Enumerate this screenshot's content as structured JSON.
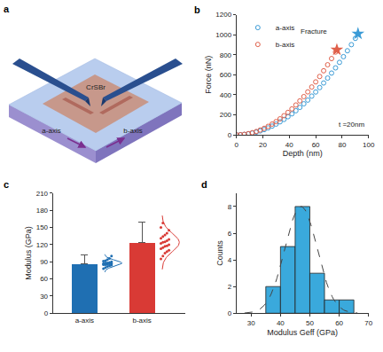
{
  "chart_data": [
    {
      "type": "diagram",
      "panel": "a",
      "labels": {
        "flake": "CrSBr",
        "axis1": "a-axis",
        "axis2": "b-axis"
      }
    },
    {
      "type": "scatter",
      "panel": "b",
      "x_label": "Depth (nm)",
      "y_label": "Force (nN)",
      "xlim": [
        0,
        100
      ],
      "xticks": [
        0,
        20,
        40,
        60,
        80,
        100
      ],
      "ylim": [
        0,
        1200
      ],
      "yticks": [
        0,
        200,
        400,
        600,
        800,
        1000,
        1200
      ],
      "grid": false,
      "legend": "upper left",
      "marker": "open circle",
      "annotations": [
        "Fracture",
        "t =20nm"
      ],
      "series": [
        {
          "name": "a-axis",
          "color": "#3b9bd6",
          "x": [
            0,
            3,
            6,
            9,
            12,
            15,
            18,
            21,
            24,
            27,
            30,
            33,
            36,
            39,
            42,
            45,
            48,
            51,
            54,
            57,
            60,
            63,
            66,
            69,
            72,
            75,
            78,
            81,
            84,
            87,
            90,
            92
          ],
          "values": [
            0,
            1,
            4,
            10,
            17,
            27,
            39,
            52,
            69,
            87,
            107,
            130,
            154,
            181,
            210,
            241,
            274,
            310,
            347,
            387,
            428,
            472,
            518,
            567,
            617,
            669,
            724,
            781,
            840,
            901,
            964,
            1007
          ],
          "fracture": {
            "x": 92,
            "y": 1010
          }
        },
        {
          "name": "b-axis",
          "color": "#e0604a",
          "x": [
            0,
            3,
            6,
            9,
            12,
            15,
            18,
            21,
            24,
            27,
            30,
            33,
            36,
            39,
            42,
            45,
            48,
            51,
            54,
            57,
            60,
            63,
            66,
            69,
            72,
            75,
            76
          ],
          "values": [
            0,
            1,
            5,
            12,
            21,
            33,
            48,
            65,
            85,
            107,
            132,
            160,
            191,
            224,
            259,
            298,
            339,
            382,
            429,
            478,
            529,
            583,
            640,
            700,
            762,
            827,
            849
          ],
          "fracture": {
            "x": 76,
            "y": 850
          }
        }
      ]
    },
    {
      "type": "bar",
      "panel": "c",
      "y_label": "Modulus (GPa)",
      "categories": [
        "a-axis",
        "b-axis"
      ],
      "values": [
        86,
        123
      ],
      "error": [
        16,
        37
      ],
      "colors": [
        "#1f6fb2",
        "#d93a35"
      ],
      "ylim": [
        0,
        210
      ],
      "yticks": [
        0,
        30,
        60,
        90,
        120,
        150,
        180,
        210
      ],
      "grid": false,
      "points": [
        [
          78,
          80,
          82,
          83,
          84,
          85,
          85,
          86,
          86,
          87,
          87,
          88,
          88,
          89,
          90,
          91,
          92,
          94,
          96,
          100
        ],
        [
          95,
          100,
          105,
          108,
          110,
          113,
          115,
          117,
          118,
          120,
          122,
          124,
          125,
          127,
          129,
          131,
          134,
          137,
          140,
          145,
          150,
          158
        ]
      ]
    },
    {
      "type": "histogram",
      "panel": "d",
      "x_label": "Modulus Geff (GPa)",
      "y_label": "Counts",
      "bins": [
        35,
        40,
        45,
        50,
        55,
        60,
        65
      ],
      "counts": [
        2,
        5,
        8,
        3,
        1,
        1
      ],
      "color": "#3aa9dc",
      "fit": {
        "mean": 47,
        "sd": 5.5,
        "peak": 8
      },
      "xlim": [
        25,
        70
      ],
      "xticks": [
        30,
        40,
        50,
        60,
        70
      ],
      "ylim": [
        0,
        9
      ],
      "yticks": [
        0,
        2,
        4,
        6,
        8
      ],
      "grid": false
    }
  ]
}
